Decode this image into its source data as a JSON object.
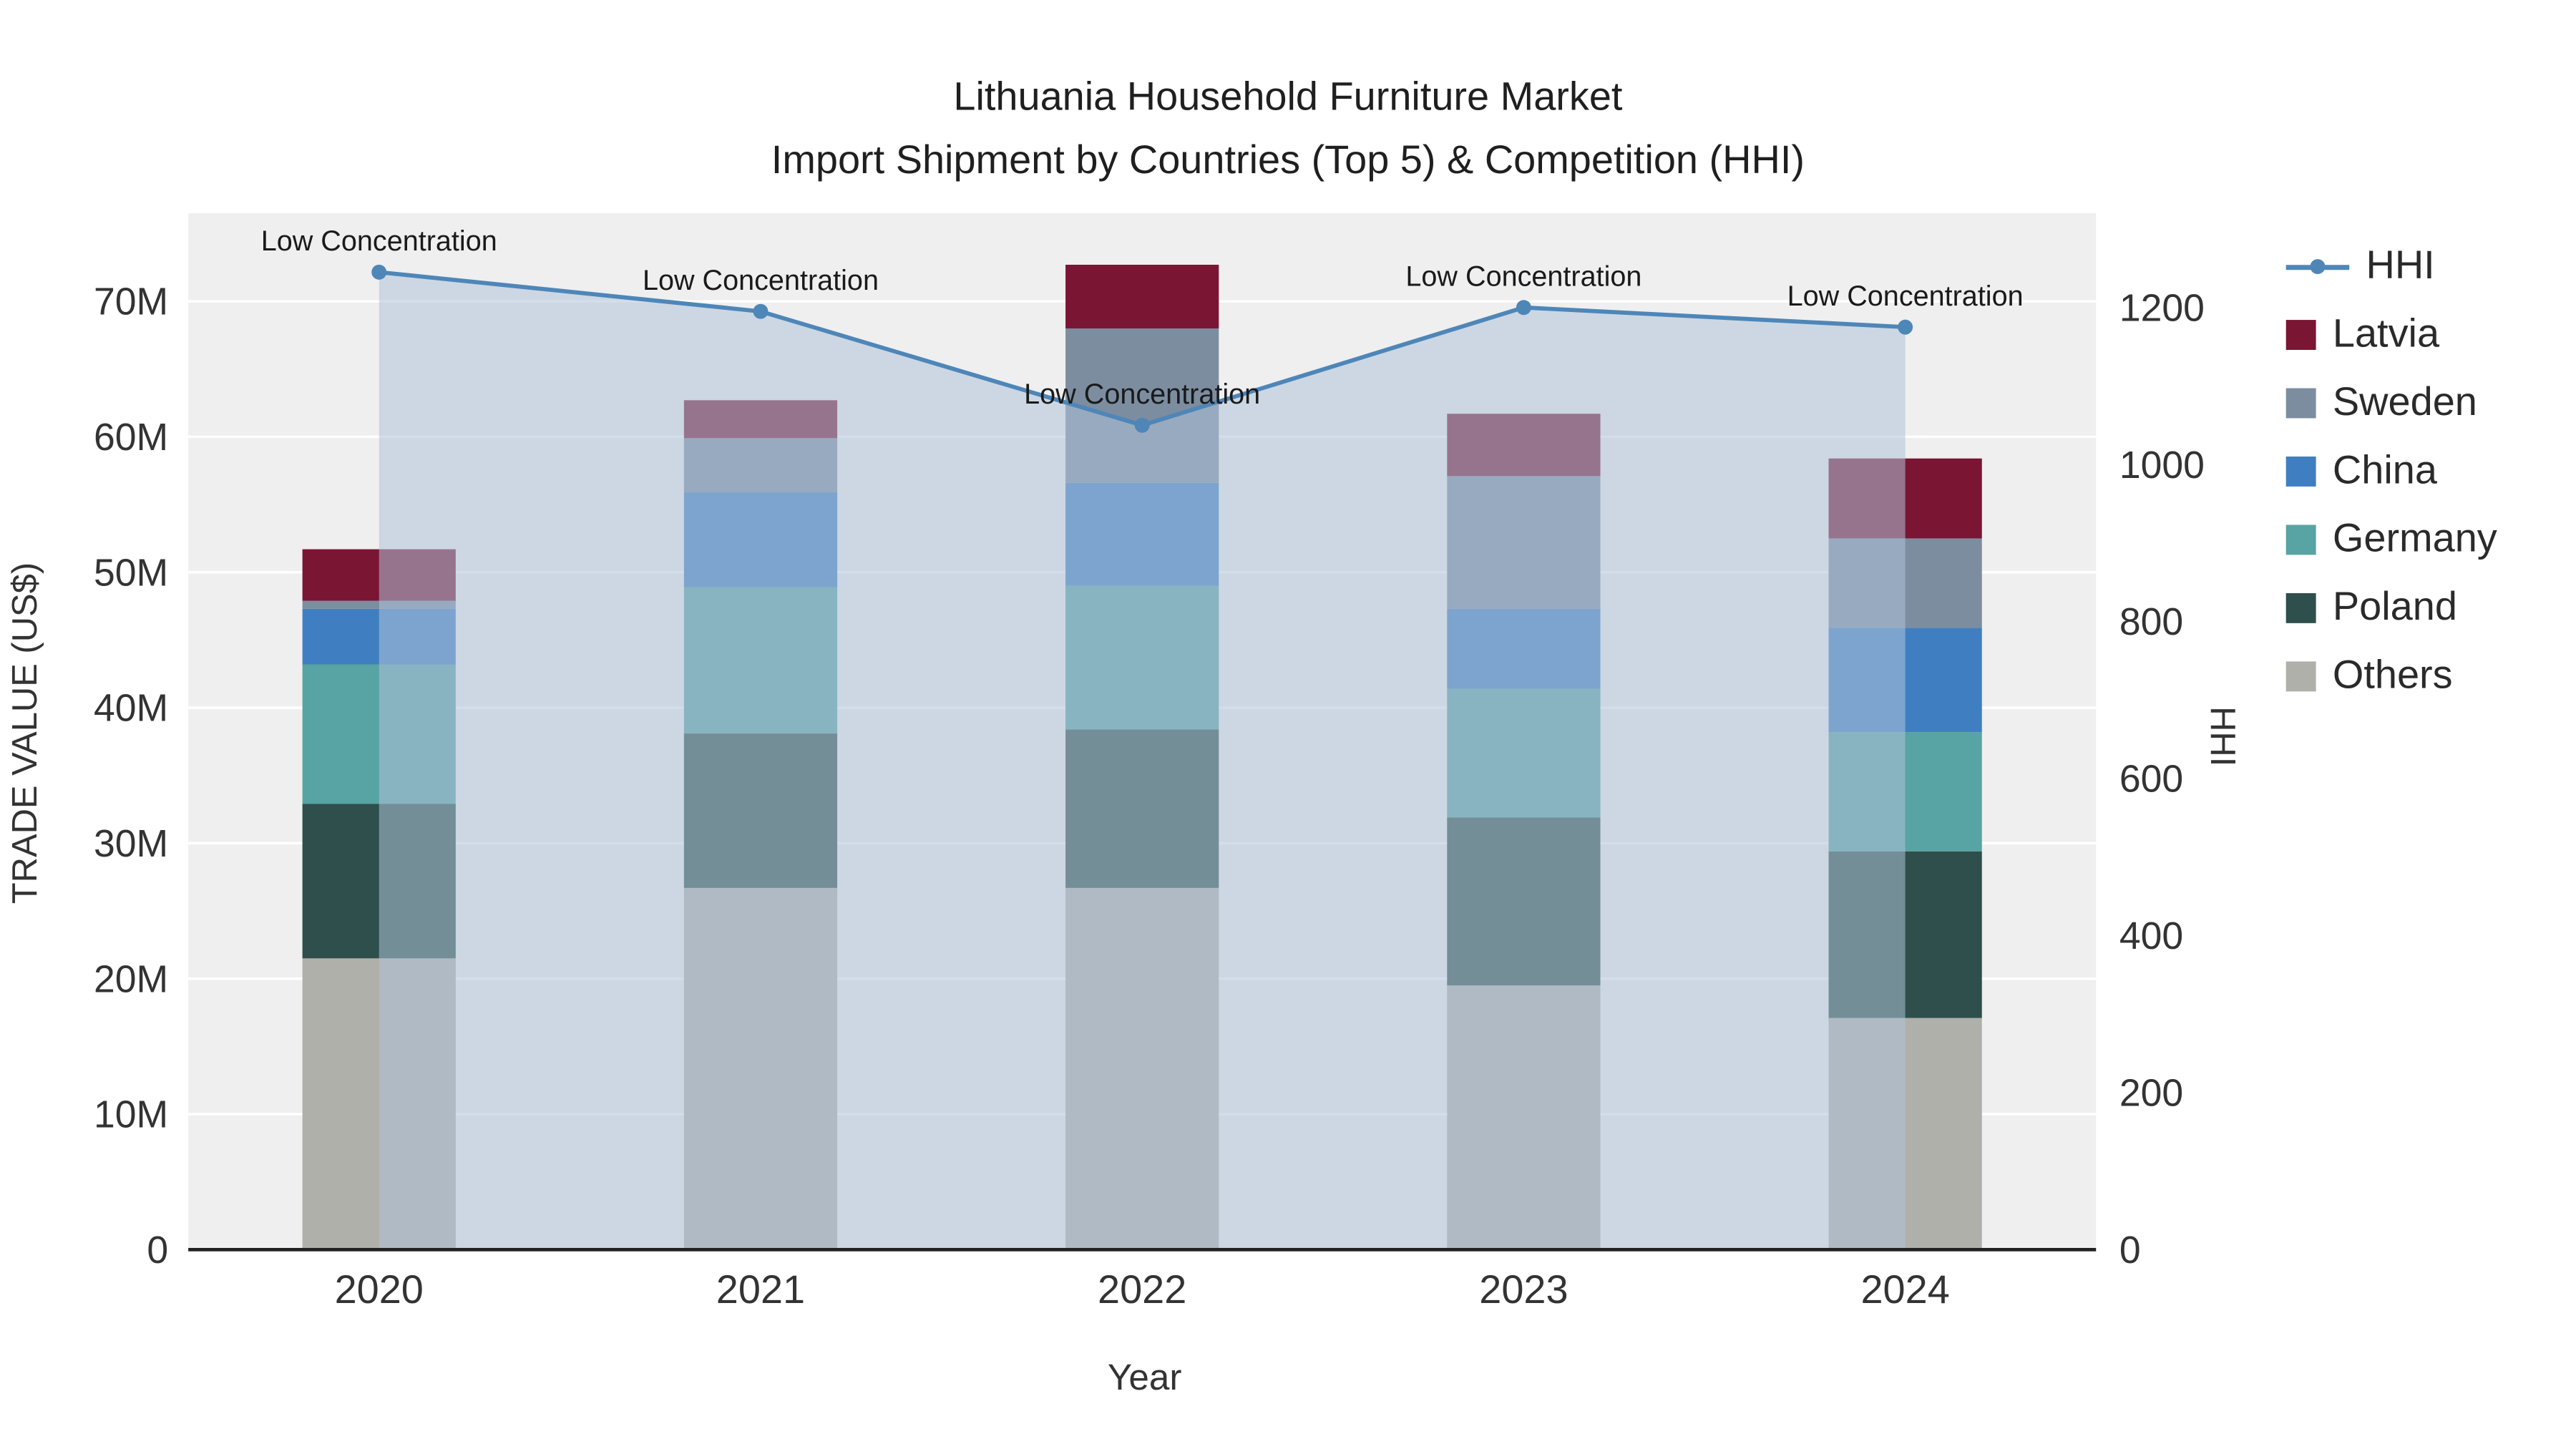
{
  "title": {
    "line1": "Lithuania Household Furniture Market",
    "line2": "Import Shipment by Countries (Top 5) & Competition (HHI)"
  },
  "chart_data": {
    "type": "bar",
    "subtype": "stacked-bars-with-line-overlay",
    "categories": [
      "2020",
      "2021",
      "2022",
      "2023",
      "2024"
    ],
    "unit": "million US$",
    "stack_order_bottom_to_top": [
      "Others",
      "Poland",
      "Germany",
      "China",
      "Sweden",
      "Latvia"
    ],
    "series": [
      {
        "name": "Latvia",
        "color": "#7a1533",
        "values": [
          3.8,
          2.8,
          4.7,
          4.6,
          5.9
        ]
      },
      {
        "name": "Sweden",
        "color": "#7c8da0",
        "values": [
          0.6,
          4.0,
          11.4,
          9.8,
          6.6
        ]
      },
      {
        "name": "China",
        "color": "#3f7fc1",
        "values": [
          4.1,
          7.0,
          7.6,
          5.9,
          7.7
        ]
      },
      {
        "name": "Germany",
        "color": "#58a3a3",
        "values": [
          10.3,
          10.8,
          10.6,
          9.5,
          8.8
        ]
      },
      {
        "name": "Poland",
        "color": "#2e4f4b",
        "values": [
          11.4,
          11.4,
          11.7,
          12.4,
          12.3
        ]
      },
      {
        "name": "Others",
        "color": "#b0b0aa",
        "values": [
          21.5,
          26.7,
          26.7,
          19.5,
          17.1
        ]
      }
    ],
    "line_series": {
      "name": "HHI",
      "color": "#4e86b8",
      "fill_color": "rgba(174,195,216,0.55)",
      "values": [
        1245,
        1195,
        1050,
        1200,
        1175
      ]
    },
    "annotations": [
      "Low Concentration",
      "Low Concentration",
      "Low Concentration",
      "Low Concentration",
      "Low Concentration"
    ],
    "xlabel": "Year",
    "ylabel_left": "TRADE VALUE (US$)",
    "ylabel_right": "HHI",
    "y_left_ticks": [
      0,
      10,
      20,
      30,
      40,
      50,
      60,
      70
    ],
    "y_left_tick_labels": [
      "0",
      "10M",
      "20M",
      "30M",
      "40M",
      "50M",
      "60M",
      "70M"
    ],
    "y_left_max": 76.5,
    "y_right_ticks": [
      0,
      200,
      400,
      600,
      800,
      1000,
      1200
    ],
    "y_right_tick_labels": [
      "0",
      "200",
      "400",
      "600",
      "800",
      "1000",
      "1200"
    ],
    "y_right_max": 1320,
    "legend": [
      "HHI",
      "Latvia",
      "Sweden",
      "China",
      "Germany",
      "Poland",
      "Others"
    ],
    "legend_position": "right",
    "grid": true,
    "plot_bg": "#efefef",
    "grid_color": "#ffffff"
  }
}
